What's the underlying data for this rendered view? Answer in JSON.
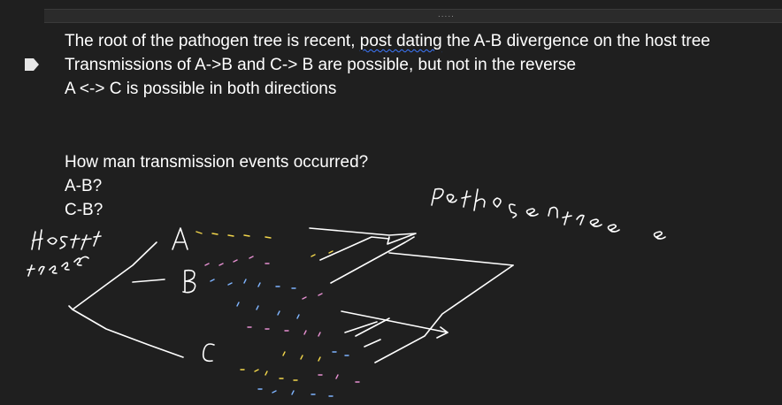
{
  "cell": {
    "handle_dots": "....."
  },
  "notes": {
    "line1_pre": "The root of the pathogen tree is recent, ",
    "line1_err": "post dating",
    "line1_post": " the A-B divergence on the host tree",
    "line2": "Transmissions of A->B and C-> B are possible, but not in the reverse",
    "line3": "A <-> C is possible in both directions"
  },
  "question": {
    "q": "How man transmission events occurred?",
    "ab": "A-B?",
    "cb": "C-B?"
  },
  "ink": {
    "host_label": "Host tree",
    "pathogen_label": "Pathogen tree",
    "tips": [
      "A",
      "B",
      "C"
    ],
    "colors": {
      "ink": "#ffffff",
      "dash_yellow": "#f2d64b",
      "dash_pink": "#e58fd0",
      "dash_blue": "#7fb4ff"
    }
  },
  "icons": [
    "collapse-arrow-icon"
  ]
}
